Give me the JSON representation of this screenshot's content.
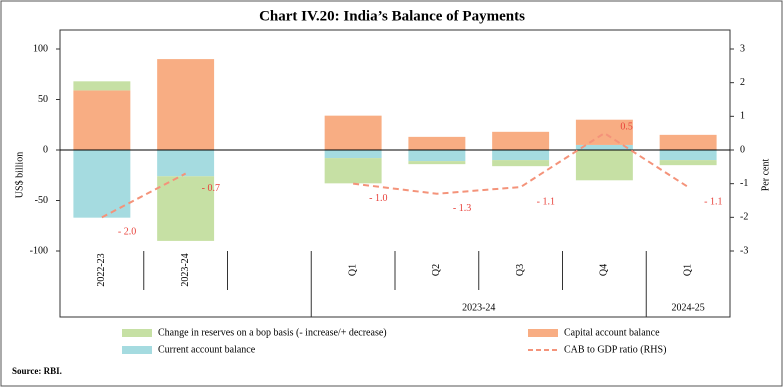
{
  "chart_data": {
    "type": "bar",
    "title": "Chart IV.20: India’s Balance of Payments",
    "y_label": "US$ billion",
    "y2_label": "Per cent",
    "categories": [
      "2022-23",
      "2023-24",
      null,
      "Q1",
      "Q2",
      "Q3",
      "Q4",
      "Q1"
    ],
    "category_groups": [
      null,
      null,
      null,
      "2023-24",
      "2023-24",
      "2023-24",
      "2023-24",
      "2024-25"
    ],
    "stacked": true,
    "series": [
      {
        "name": "Current account balance",
        "color": "#a5dbe0",
        "values": [
          -67,
          -26,
          null,
          -8,
          -11,
          -10,
          5,
          -10
        ]
      },
      {
        "name": "Capital account balance",
        "color": "#f8ad83",
        "values": [
          59,
          90,
          null,
          34,
          13,
          18,
          25,
          15
        ]
      },
      {
        "name": "Change in reserves on a bop basis (- increase/+ decrease)",
        "color": "#c6e0a4",
        "values": [
          9,
          -64,
          null,
          -25,
          -3,
          -6,
          -30,
          -5
        ]
      },
      {
        "name": "CAB to GDP ratio (RHS)",
        "type": "line",
        "axis": "y2",
        "color": "#f4937a",
        "dashed": true,
        "values": [
          -2.0,
          -0.7,
          null,
          -1.0,
          -1.3,
          -1.1,
          0.5,
          -1.1
        ],
        "value_labels": [
          "- 2.0",
          "- 0.7",
          null,
          "- 1.0",
          "- 1.3",
          "- 1.1",
          "0.5",
          "- 1.1"
        ]
      }
    ],
    "ylim": [
      -100,
      100
    ],
    "yticks": [
      -100,
      -50,
      0,
      50,
      100
    ],
    "y2lim": [
      -3,
      3
    ],
    "y2ticks": [
      -3,
      -2,
      -1,
      0,
      1,
      2,
      3
    ],
    "source": "Source: RBI."
  }
}
